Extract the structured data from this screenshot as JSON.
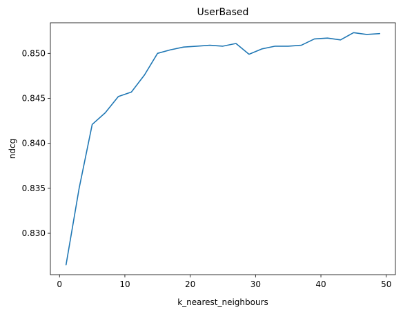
{
  "chart_data": {
    "type": "line",
    "title": "UserBased",
    "xlabel": "k_nearest_neighbours",
    "ylabel": "ndcg",
    "xlim": [
      -1.4,
      51.4
    ],
    "ylim": [
      0.8254,
      0.8534
    ],
    "xticks": [
      0,
      10,
      20,
      30,
      40,
      50
    ],
    "yticks": [
      0.83,
      0.835,
      0.84,
      0.845,
      0.85
    ],
    "ytick_labels": [
      "0.830",
      "0.835",
      "0.840",
      "0.845",
      "0.850"
    ],
    "grid": false,
    "series": [
      {
        "color": "#1f77b4",
        "x": [
          1,
          3,
          5,
          7,
          9,
          11,
          13,
          15,
          17,
          19,
          21,
          23,
          25,
          27,
          29,
          31,
          33,
          35,
          37,
          39,
          41,
          43,
          45,
          47,
          49
        ],
        "y": [
          0.8265,
          0.835,
          0.8421,
          0.8434,
          0.8452,
          0.8457,
          0.8476,
          0.85,
          0.8504,
          0.8507,
          0.8508,
          0.8509,
          0.8508,
          0.8511,
          0.8499,
          0.8505,
          0.8508,
          0.8508,
          0.8509,
          0.8516,
          0.8517,
          0.8515,
          0.8523,
          0.8521,
          0.8522
        ]
      }
    ]
  }
}
